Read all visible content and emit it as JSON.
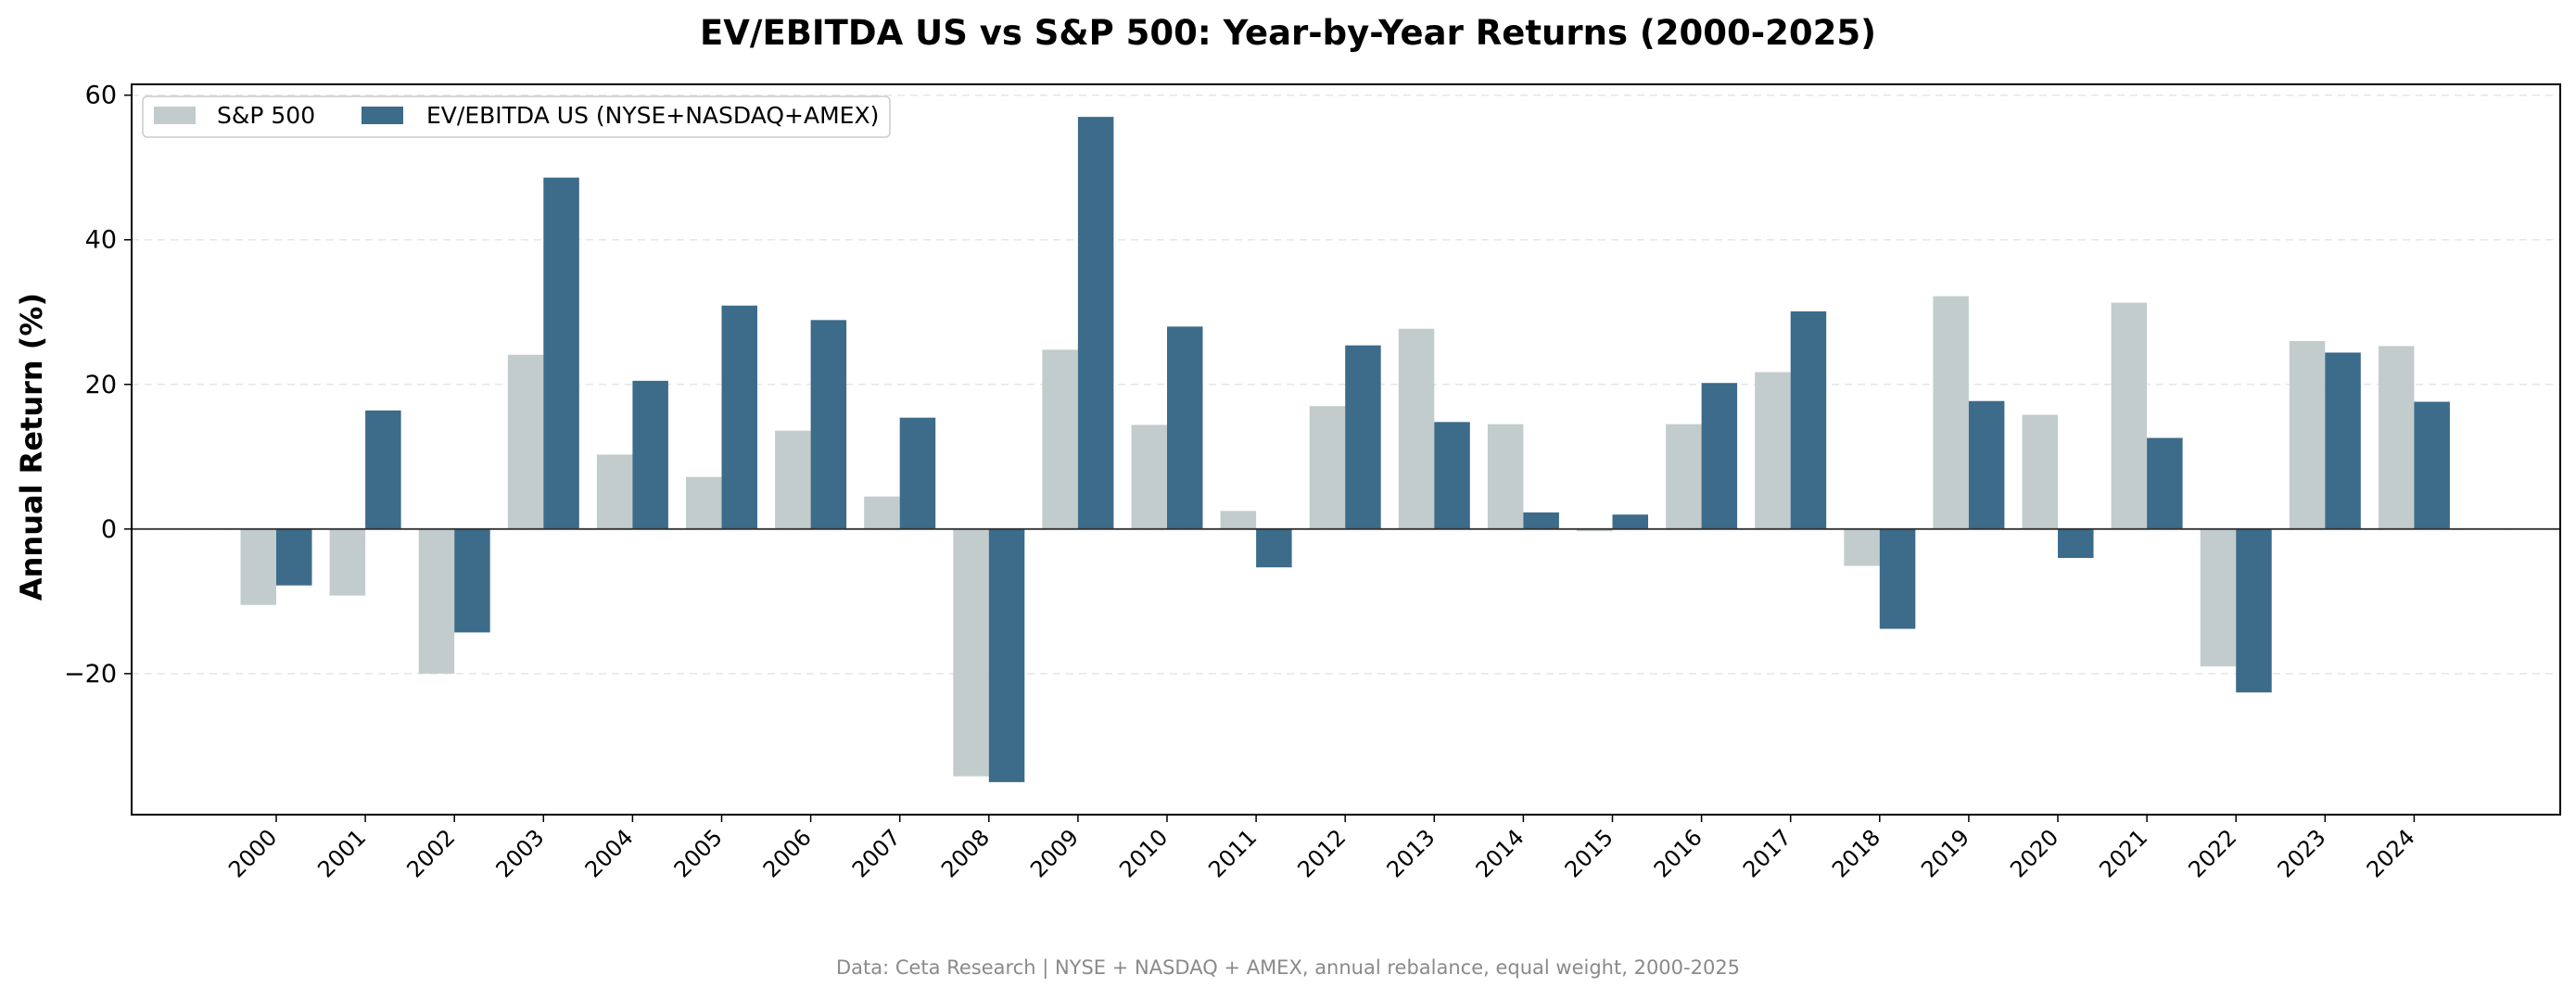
{
  "chart_data": {
    "type": "bar",
    "title": "EV/EBITDA US vs S&P 500: Year-by-Year Returns (2000-2025)",
    "xlabel": "",
    "ylabel": "Annual Return (%)",
    "ylim": [
      -39.5,
      61.5
    ],
    "yticks": [
      -20,
      0,
      20,
      40,
      60
    ],
    "ytick_labels": [
      "−20",
      "0",
      "20",
      "40",
      "60"
    ],
    "grid": true,
    "legend_position": "top-left",
    "categories": [
      "2000",
      "2001",
      "2002",
      "2003",
      "2004",
      "2005",
      "2006",
      "2007",
      "2008",
      "2009",
      "2010",
      "2011",
      "2012",
      "2013",
      "2014",
      "2015",
      "2016",
      "2017",
      "2018",
      "2019",
      "2020",
      "2021",
      "2022",
      "2023",
      "2024"
    ],
    "series": [
      {
        "name": "S&P 500",
        "color": "#c2cccc",
        "values": [
          -10.5,
          -9.2,
          -20.0,
          24.1,
          10.3,
          7.2,
          13.6,
          4.5,
          -34.2,
          24.8,
          14.4,
          2.5,
          17.0,
          27.7,
          14.5,
          -0.3,
          14.5,
          21.7,
          -5.1,
          32.2,
          15.8,
          31.3,
          -19.0,
          26.0,
          25.3
        ]
      },
      {
        "name": "EV/EBITDA US (NYSE+NASDAQ+AMEX)",
        "color": "#3d6b8a",
        "values": [
          -7.8,
          16.4,
          -14.3,
          48.6,
          20.5,
          30.9,
          28.9,
          15.4,
          -35.0,
          57.0,
          28.0,
          -5.3,
          25.4,
          14.8,
          2.3,
          2.0,
          20.2,
          30.1,
          -13.8,
          17.7,
          -4.0,
          12.6,
          -22.6,
          24.4,
          17.6
        ]
      }
    ]
  },
  "footnote": "Data: Ceta Research | NYSE + NASDAQ + AMEX, annual rebalance, equal weight, 2000-2025"
}
